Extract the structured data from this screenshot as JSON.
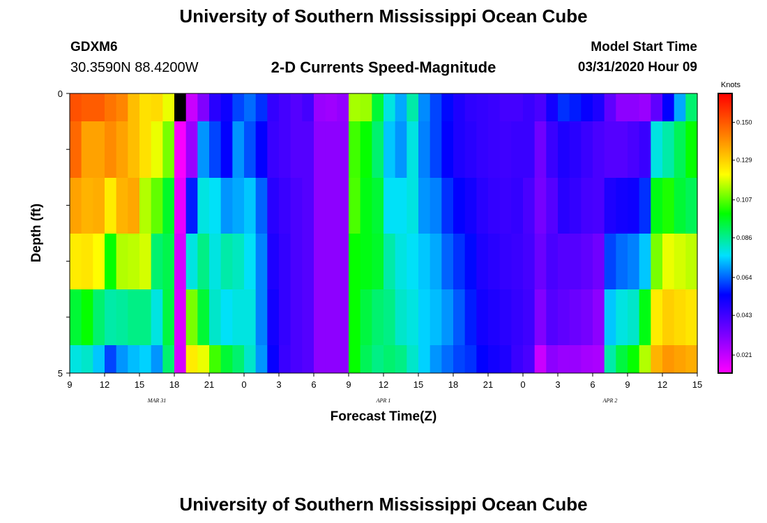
{
  "header": {
    "title": "University of Southern Mississippi Ocean Cube",
    "station_id": "GDXM6",
    "station_coords": "30.3590N 88.4200W",
    "subtitle": "2-D Currents Speed-Magnitude",
    "model_label": "Model Start Time",
    "model_time": "03/31/2020 Hour 09"
  },
  "footer": {
    "title": "University of Southern Mississippi Ocean Cube"
  },
  "chart_data": {
    "type": "heatmap",
    "xlabel": "Forecast Time(Z)",
    "ylabel": "Depth (ft)",
    "x_tick_labels": [
      "9",
      "12",
      "15",
      "18",
      "21",
      "0",
      "3",
      "6",
      "9",
      "12",
      "15",
      "18",
      "21",
      "0",
      "3",
      "6",
      "9",
      "12",
      "15"
    ],
    "date_labels": [
      {
        "text": "MAR 31",
        "hour_index": 7.5
      },
      {
        "text": "APR 1",
        "hour_index": 27
      },
      {
        "text": "APR 2",
        "hour_index": 46.5
      }
    ],
    "y_tick_labels": [
      "0",
      "5"
    ],
    "ylim": [
      0,
      5
    ],
    "hours": 54,
    "depth_rows": 5,
    "colorbar": {
      "label": "Knots",
      "ticks": [
        "0.150",
        "0.129",
        "0.107",
        "0.086",
        "0.064",
        "0.043",
        "0.021"
      ],
      "tick_values": [
        0.15,
        0.129,
        0.107,
        0.086,
        0.064,
        0.043,
        0.021
      ],
      "vmin": 0.011,
      "vmax": 0.166,
      "colormap": [
        "#ff00ff",
        "#7a00ff",
        "#0000ff",
        "#00e0ff",
        "#00ff00",
        "#ffff00",
        "#ff8000",
        "#ff0000"
      ]
    },
    "profiles": [
      [
        [
          0,
          0.152
        ],
        [
          1,
          0.15
        ],
        [
          2,
          0.15
        ],
        [
          3,
          0.146
        ],
        [
          4,
          0.143
        ],
        [
          5,
          0.133
        ],
        [
          6,
          0.127
        ],
        [
          7,
          0.128
        ],
        [
          8,
          0.12
        ],
        [
          9,
          0.005
        ],
        [
          10,
          0.02
        ],
        [
          11,
          0.032
        ],
        [
          12,
          0.048
        ],
        [
          13,
          0.053
        ],
        [
          14,
          0.062
        ],
        [
          15,
          0.066
        ],
        [
          16,
          0.06
        ],
        [
          17,
          0.046
        ],
        [
          18,
          0.043
        ],
        [
          19,
          0.04
        ],
        [
          20,
          0.043
        ],
        [
          21,
          0.028
        ],
        [
          22,
          0.027
        ],
        [
          23,
          0.029
        ],
        [
          24,
          0.114
        ],
        [
          25,
          0.113
        ],
        [
          26,
          0.095
        ],
        [
          27,
          0.08
        ],
        [
          28,
          0.072
        ],
        [
          29,
          0.085
        ],
        [
          30,
          0.069
        ],
        [
          31,
          0.062
        ],
        [
          32,
          0.056
        ],
        [
          33,
          0.05
        ],
        [
          34,
          0.047
        ],
        [
          35,
          0.046
        ],
        [
          36,
          0.045
        ],
        [
          37,
          0.043
        ],
        [
          38,
          0.043
        ],
        [
          39,
          0.045
        ],
        [
          40,
          0.042
        ],
        [
          41,
          0.052
        ],
        [
          42,
          0.06
        ],
        [
          43,
          0.058
        ],
        [
          44,
          0.054
        ],
        [
          45,
          0.05
        ],
        [
          46,
          0.038
        ],
        [
          47,
          0.03
        ],
        [
          48,
          0.03
        ],
        [
          49,
          0.028
        ],
        [
          50,
          0.038
        ],
        [
          51,
          0.055
        ],
        [
          52,
          0.072
        ],
        [
          53,
          0.09
        ]
      ],
      [
        [
          0,
          0.148
        ],
        [
          1,
          0.138
        ],
        [
          2,
          0.138
        ],
        [
          3,
          0.142
        ],
        [
          4,
          0.138
        ],
        [
          5,
          0.133
        ],
        [
          6,
          0.127
        ],
        [
          7,
          0.12
        ],
        [
          8,
          0.11
        ],
        [
          9,
          0.012
        ],
        [
          10,
          0.028
        ],
        [
          11,
          0.07
        ],
        [
          12,
          0.062
        ],
        [
          13,
          0.055
        ],
        [
          14,
          0.07
        ],
        [
          15,
          0.063
        ],
        [
          16,
          0.055
        ],
        [
          17,
          0.045
        ],
        [
          18,
          0.043
        ],
        [
          19,
          0.04
        ],
        [
          20,
          0.04
        ],
        [
          21,
          0.03
        ],
        [
          22,
          0.03
        ],
        [
          23,
          0.03
        ],
        [
          24,
          0.105
        ],
        [
          25,
          0.1
        ],
        [
          26,
          0.09
        ],
        [
          27,
          0.075
        ],
        [
          28,
          0.07
        ],
        [
          29,
          0.08
        ],
        [
          30,
          0.068
        ],
        [
          31,
          0.062
        ],
        [
          32,
          0.055
        ],
        [
          33,
          0.05
        ],
        [
          34,
          0.048
        ],
        [
          35,
          0.046
        ],
        [
          36,
          0.045
        ],
        [
          37,
          0.044
        ],
        [
          38,
          0.045
        ],
        [
          39,
          0.045
        ],
        [
          40,
          0.035
        ],
        [
          41,
          0.045
        ],
        [
          42,
          0.05
        ],
        [
          43,
          0.048
        ],
        [
          44,
          0.045
        ],
        [
          45,
          0.042
        ],
        [
          46,
          0.04
        ],
        [
          47,
          0.04
        ],
        [
          48,
          0.042
        ],
        [
          49,
          0.045
        ],
        [
          50,
          0.08
        ],
        [
          51,
          0.085
        ],
        [
          52,
          0.092
        ],
        [
          53,
          0.1
        ]
      ],
      [
        [
          0,
          0.138
        ],
        [
          1,
          0.135
        ],
        [
          2,
          0.136
        ],
        [
          3,
          0.125
        ],
        [
          4,
          0.135
        ],
        [
          5,
          0.137
        ],
        [
          6,
          0.115
        ],
        [
          7,
          0.108
        ],
        [
          8,
          0.096
        ],
        [
          9,
          0.015
        ],
        [
          10,
          0.058
        ],
        [
          11,
          0.08
        ],
        [
          12,
          0.078
        ],
        [
          13,
          0.07
        ],
        [
          14,
          0.072
        ],
        [
          15,
          0.075
        ],
        [
          16,
          0.065
        ],
        [
          17,
          0.048
        ],
        [
          18,
          0.045
        ],
        [
          19,
          0.042
        ],
        [
          20,
          0.04
        ],
        [
          21,
          0.03
        ],
        [
          22,
          0.03
        ],
        [
          23,
          0.03
        ],
        [
          24,
          0.106
        ],
        [
          25,
          0.098
        ],
        [
          26,
          0.095
        ],
        [
          27,
          0.078
        ],
        [
          28,
          0.078
        ],
        [
          29,
          0.08
        ],
        [
          30,
          0.07
        ],
        [
          31,
          0.068
        ],
        [
          32,
          0.06
        ],
        [
          33,
          0.055
        ],
        [
          34,
          0.052
        ],
        [
          35,
          0.048
        ],
        [
          36,
          0.046
        ],
        [
          37,
          0.045
        ],
        [
          38,
          0.046
        ],
        [
          39,
          0.042
        ],
        [
          40,
          0.034
        ],
        [
          41,
          0.04
        ],
        [
          42,
          0.048
        ],
        [
          43,
          0.046
        ],
        [
          44,
          0.043
        ],
        [
          45,
          0.042
        ],
        [
          46,
          0.05
        ],
        [
          47,
          0.052
        ],
        [
          48,
          0.053
        ],
        [
          49,
          0.06
        ],
        [
          50,
          0.098
        ],
        [
          51,
          0.102
        ],
        [
          52,
          0.095
        ],
        [
          53,
          0.092
        ]
      ],
      [
        [
          0,
          0.125
        ],
        [
          1,
          0.126
        ],
        [
          2,
          0.122
        ],
        [
          3,
          0.1
        ],
        [
          4,
          0.115
        ],
        [
          5,
          0.116
        ],
        [
          6,
          0.118
        ],
        [
          7,
          0.09
        ],
        [
          8,
          0.093
        ],
        [
          9,
          0.018
        ],
        [
          10,
          0.08
        ],
        [
          11,
          0.088
        ],
        [
          12,
          0.08
        ],
        [
          13,
          0.085
        ],
        [
          14,
          0.083
        ],
        [
          15,
          0.078
        ],
        [
          16,
          0.068
        ],
        [
          17,
          0.05
        ],
        [
          18,
          0.046
        ],
        [
          19,
          0.042
        ],
        [
          20,
          0.04
        ],
        [
          21,
          0.03
        ],
        [
          22,
          0.03
        ],
        [
          23,
          0.03
        ],
        [
          24,
          0.1
        ],
        [
          25,
          0.098
        ],
        [
          26,
          0.096
        ],
        [
          27,
          0.085
        ],
        [
          28,
          0.08
        ],
        [
          29,
          0.078
        ],
        [
          30,
          0.075
        ],
        [
          31,
          0.072
        ],
        [
          32,
          0.065
        ],
        [
          33,
          0.06
        ],
        [
          34,
          0.056
        ],
        [
          35,
          0.05
        ],
        [
          36,
          0.048
        ],
        [
          37,
          0.046
        ],
        [
          38,
          0.045
        ],
        [
          39,
          0.043
        ],
        [
          40,
          0.036
        ],
        [
          41,
          0.042
        ],
        [
          42,
          0.04
        ],
        [
          43,
          0.04
        ],
        [
          44,
          0.038
        ],
        [
          45,
          0.035
        ],
        [
          46,
          0.062
        ],
        [
          47,
          0.066
        ],
        [
          48,
          0.068
        ],
        [
          49,
          0.075
        ],
        [
          50,
          0.11
        ],
        [
          51,
          0.12
        ],
        [
          52,
          0.118
        ],
        [
          53,
          0.116
        ]
      ],
      [
        [
          0,
          0.095
        ],
        [
          1,
          0.1
        ],
        [
          2,
          0.09
        ],
        [
          3,
          0.085
        ],
        [
          4,
          0.086
        ],
        [
          5,
          0.088
        ],
        [
          6,
          0.088
        ],
        [
          7,
          0.08
        ],
        [
          8,
          0.094
        ],
        [
          9,
          0.017
        ],
        [
          10,
          0.11
        ],
        [
          11,
          0.095
        ],
        [
          12,
          0.082
        ],
        [
          13,
          0.078
        ],
        [
          14,
          0.08
        ],
        [
          15,
          0.08
        ],
        [
          16,
          0.068
        ],
        [
          17,
          0.052
        ],
        [
          18,
          0.046
        ],
        [
          19,
          0.042
        ],
        [
          20,
          0.04
        ],
        [
          21,
          0.03
        ],
        [
          22,
          0.03
        ],
        [
          23,
          0.03
        ],
        [
          24,
          0.1
        ],
        [
          25,
          0.094
        ],
        [
          26,
          0.09
        ],
        [
          27,
          0.088
        ],
        [
          28,
          0.082
        ],
        [
          29,
          0.08
        ],
        [
          30,
          0.076
        ],
        [
          31,
          0.074
        ],
        [
          32,
          0.07
        ],
        [
          33,
          0.064
        ],
        [
          34,
          0.058
        ],
        [
          35,
          0.052
        ],
        [
          36,
          0.05
        ],
        [
          37,
          0.048
        ],
        [
          38,
          0.046
        ],
        [
          39,
          0.044
        ],
        [
          40,
          0.032
        ],
        [
          41,
          0.04
        ],
        [
          42,
          0.038
        ],
        [
          43,
          0.036
        ],
        [
          44,
          0.034
        ],
        [
          45,
          0.03
        ],
        [
          46,
          0.075
        ],
        [
          47,
          0.08
        ],
        [
          48,
          0.082
        ],
        [
          49,
          0.098
        ],
        [
          50,
          0.125
        ],
        [
          51,
          0.13
        ],
        [
          52,
          0.128
        ],
        [
          53,
          0.126
        ]
      ],
      [
        [
          0,
          0.08
        ],
        [
          1,
          0.082
        ],
        [
          2,
          0.075
        ],
        [
          3,
          0.062
        ],
        [
          4,
          0.07
        ],
        [
          5,
          0.074
        ],
        [
          6,
          0.076
        ],
        [
          7,
          0.07
        ],
        [
          8,
          0.09
        ],
        [
          9,
          0.018
        ],
        [
          10,
          0.125
        ],
        [
          11,
          0.12
        ],
        [
          12,
          0.105
        ],
        [
          13,
          0.095
        ],
        [
          14,
          0.09
        ],
        [
          15,
          0.082
        ],
        [
          16,
          0.07
        ],
        [
          17,
          0.054
        ],
        [
          18,
          0.045
        ],
        [
          19,
          0.042
        ],
        [
          20,
          0.04
        ],
        [
          21,
          0.03
        ],
        [
          22,
          0.03
        ],
        [
          23,
          0.03
        ],
        [
          24,
          0.1
        ],
        [
          25,
          0.092
        ],
        [
          26,
          0.088
        ],
        [
          27,
          0.09
        ],
        [
          28,
          0.088
        ],
        [
          29,
          0.082
        ],
        [
          30,
          0.076
        ],
        [
          31,
          0.07
        ],
        [
          32,
          0.066
        ],
        [
          33,
          0.062
        ],
        [
          34,
          0.06
        ],
        [
          35,
          0.055
        ],
        [
          36,
          0.052
        ],
        [
          37,
          0.05
        ],
        [
          38,
          0.045
        ],
        [
          39,
          0.042
        ],
        [
          40,
          0.02
        ],
        [
          41,
          0.03
        ],
        [
          42,
          0.028
        ],
        [
          43,
          0.028
        ],
        [
          44,
          0.026
        ],
        [
          45,
          0.025
        ],
        [
          46,
          0.085
        ],
        [
          47,
          0.094
        ],
        [
          48,
          0.1
        ],
        [
          49,
          0.115
        ],
        [
          50,
          0.135
        ],
        [
          51,
          0.14
        ],
        [
          52,
          0.138
        ],
        [
          53,
          0.136
        ]
      ]
    ]
  }
}
